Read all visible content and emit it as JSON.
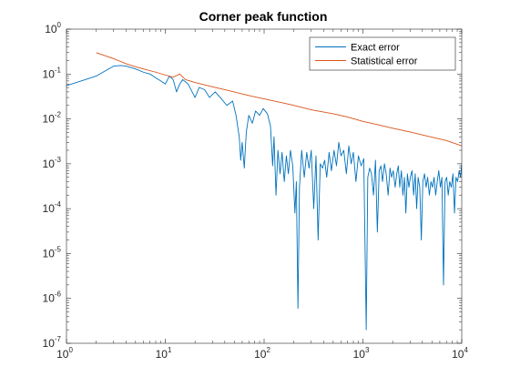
{
  "chart_data": {
    "type": "line",
    "title": "Corner peak function",
    "xlabel": "",
    "ylabel": "",
    "xscale": "log",
    "yscale": "log",
    "xlim": [
      1,
      10000
    ],
    "ylim": [
      1e-07,
      1
    ],
    "x_ticks": [
      1,
      10,
      100,
      1000,
      10000
    ],
    "x_tick_labels": [
      {
        "base": "10",
        "exp": "0"
      },
      {
        "base": "10",
        "exp": "1"
      },
      {
        "base": "10",
        "exp": "2"
      },
      {
        "base": "10",
        "exp": "3"
      },
      {
        "base": "10",
        "exp": "4"
      }
    ],
    "y_ticks": [
      1e-07,
      1e-06,
      1e-05,
      0.0001,
      0.001,
      0.01,
      0.1,
      1
    ],
    "y_tick_labels": [
      {
        "base": "10",
        "exp": "-7"
      },
      {
        "base": "10",
        "exp": "-6"
      },
      {
        "base": "10",
        "exp": "-5"
      },
      {
        "base": "10",
        "exp": "-4"
      },
      {
        "base": "10",
        "exp": "-3"
      },
      {
        "base": "10",
        "exp": "-2"
      },
      {
        "base": "10",
        "exp": "-1"
      },
      {
        "base": "10",
        "exp": "0"
      }
    ],
    "grid": false,
    "legend_position": "top-right",
    "series": [
      {
        "name": "Exact error",
        "color": "#0072BD",
        "points": [
          [
            1,
            0.055
          ],
          [
            2,
            0.09
          ],
          [
            3,
            0.15
          ],
          [
            3.5,
            0.155
          ],
          [
            4,
            0.15
          ],
          [
            5,
            0.13
          ],
          [
            6,
            0.11
          ],
          [
            7,
            0.1
          ],
          [
            8,
            0.082
          ],
          [
            9,
            0.07
          ],
          [
            10,
            0.06
          ],
          [
            11,
            0.09
          ],
          [
            12,
            0.075
          ],
          [
            13,
            0.04
          ],
          [
            14,
            0.06
          ],
          [
            15,
            0.075
          ],
          [
            17,
            0.06
          ],
          [
            20,
            0.03
          ],
          [
            22,
            0.05
          ],
          [
            25,
            0.045
          ],
          [
            28,
            0.03
          ],
          [
            32,
            0.04
          ],
          [
            36,
            0.03
          ],
          [
            42,
            0.02
          ],
          [
            48,
            0.025
          ],
          [
            52,
            0.012
          ],
          [
            56,
            0.004
          ],
          [
            58,
            0.0012
          ],
          [
            60,
            0.003
          ],
          [
            63,
            0.0008
          ],
          [
            66,
            0.005
          ],
          [
            70,
            0.012
          ],
          [
            76,
            0.008
          ],
          [
            82,
            0.015
          ],
          [
            90,
            0.012
          ],
          [
            98,
            0.017
          ],
          [
            108,
            0.013
          ],
          [
            116,
            0.007
          ],
          [
            122,
            0.0009
          ],
          [
            126,
            0.004
          ],
          [
            132,
            0.0002
          ],
          [
            138,
            0.002
          ],
          [
            145,
            0.0006
          ],
          [
            152,
            0.0018
          ],
          [
            160,
            0.0004
          ],
          [
            168,
            0.0015
          ],
          [
            176,
            0.0006
          ],
          [
            185,
            0.002
          ],
          [
            195,
            0.0009
          ],
          [
            205,
            8e-05
          ],
          [
            212,
            0.0004
          ],
          [
            220,
            6e-07
          ],
          [
            228,
            0.0003
          ],
          [
            240,
            0.002
          ],
          [
            255,
            0.0005
          ],
          [
            270,
            0.0018
          ],
          [
            285,
            0.0008
          ],
          [
            300,
            0.002
          ],
          [
            318,
            0.0001
          ],
          [
            335,
            0.0015
          ],
          [
            352,
            2e-05
          ],
          [
            370,
            0.001
          ],
          [
            390,
            0.0008
          ],
          [
            410,
            0.0012
          ],
          [
            430,
            0.0005
          ],
          [
            455,
            0.0018
          ],
          [
            480,
            0.0007
          ],
          [
            510,
            0.002
          ],
          [
            540,
            0.0009
          ],
          [
            570,
            0.003
          ],
          [
            600,
            0.0015
          ],
          [
            640,
            0.002
          ],
          [
            680,
            0.0006
          ],
          [
            720,
            0.0025
          ],
          [
            760,
            0.001
          ],
          [
            800,
            0.0018
          ],
          [
            850,
            0.0004
          ],
          [
            900,
            0.0015
          ],
          [
            960,
            0.0009
          ],
          [
            1020,
            0.0013
          ],
          [
            1080,
            2e-07
          ],
          [
            1120,
            0.0005
          ],
          [
            1170,
            0.0008
          ],
          [
            1220,
            0.0006
          ],
          [
            1280,
            0.0002
          ],
          [
            1340,
            0.0012
          ],
          [
            1400,
            3e-05
          ],
          [
            1460,
            0.0007
          ],
          [
            1520,
            0.0009
          ],
          [
            1580,
            0.0004
          ],
          [
            1650,
            0.001
          ],
          [
            1720,
            0.0006
          ],
          [
            1800,
            0.0002
          ],
          [
            1880,
            0.0008
          ],
          [
            1950,
            0.0005
          ],
          [
            2030,
            0.0007
          ],
          [
            2120,
            0.0003
          ],
          [
            2200,
            0.0006
          ],
          [
            2280,
            0.0009
          ],
          [
            2360,
            0.0003
          ],
          [
            2450,
            0.0007
          ],
          [
            2540,
            0.0002
          ],
          [
            2630,
            0.0005
          ],
          [
            2720,
            8e-05
          ],
          [
            2820,
            0.0006
          ],
          [
            2920,
            0.0003
          ],
          [
            3020,
            0.0005
          ],
          [
            3140,
            0.0007
          ],
          [
            3260,
            0.0002
          ],
          [
            3380,
            0.0006
          ],
          [
            3500,
            0.0001
          ],
          [
            3620,
            0.0005
          ],
          [
            3760,
            0.0003
          ],
          [
            3900,
            2e-05
          ],
          [
            4040,
            0.0004
          ],
          [
            4200,
            0.0006
          ],
          [
            4360,
            0.0003
          ],
          [
            4520,
            0.0005
          ],
          [
            4700,
            0.0002
          ],
          [
            4880,
            0.0004
          ],
          [
            5060,
            0.0003
          ],
          [
            5250,
            0.0005
          ],
          [
            5450,
            0.0002
          ],
          [
            5650,
            0.0004
          ],
          [
            5860,
            0.0007
          ],
          [
            6080,
            0.0003
          ],
          [
            6300,
            0.0005
          ],
          [
            6540,
            2e-06
          ],
          [
            6780,
            0.0004
          ],
          [
            7040,
            0.0005
          ],
          [
            7300,
            0.0002
          ],
          [
            7560,
            0.0004
          ],
          [
            7850,
            0.0003
          ],
          [
            8150,
            0.0006
          ],
          [
            8450,
            8e-05
          ],
          [
            8750,
            0.0005
          ],
          [
            9080,
            0.0004
          ],
          [
            9420,
            0.0007
          ],
          [
            9720,
            0.0005
          ],
          [
            10000,
            0.001
          ]
        ]
      },
      {
        "name": "Statistical error",
        "color": "#D95319",
        "points": [
          [
            2,
            0.3
          ],
          [
            3,
            0.22
          ],
          [
            4,
            0.17
          ],
          [
            5,
            0.145
          ],
          [
            6,
            0.13
          ],
          [
            8,
            0.11
          ],
          [
            10,
            0.095
          ],
          [
            12,
            0.085
          ],
          [
            14,
            0.1
          ],
          [
            16,
            0.075
          ],
          [
            20,
            0.065
          ],
          [
            30,
            0.052
          ],
          [
            40,
            0.045
          ],
          [
            60,
            0.036
          ],
          [
            80,
            0.031
          ],
          [
            100,
            0.028
          ],
          [
            150,
            0.023
          ],
          [
            200,
            0.02
          ],
          [
            300,
            0.016
          ],
          [
            500,
            0.013
          ],
          [
            700,
            0.011
          ],
          [
            1000,
            0.0088
          ],
          [
            1500,
            0.0072
          ],
          [
            2000,
            0.0062
          ],
          [
            3000,
            0.0051
          ],
          [
            5000,
            0.0039
          ],
          [
            7000,
            0.0033
          ],
          [
            10000,
            0.0025
          ]
        ]
      }
    ]
  }
}
